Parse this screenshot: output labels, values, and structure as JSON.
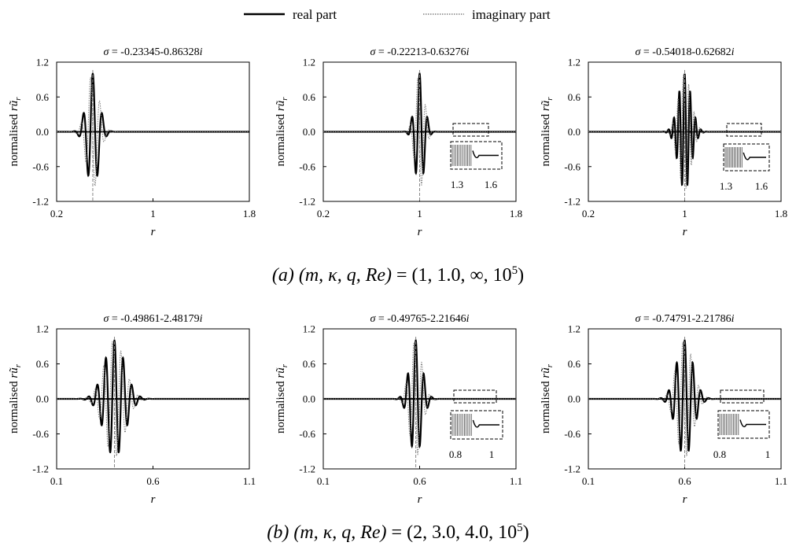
{
  "legend": {
    "real_label": "real part",
    "imag_label": "imaginary part"
  },
  "y_axis_label": {
    "main": "normalised ",
    "var": "r",
    "u": "ũ",
    "sub": "r"
  },
  "rows": [
    {
      "caption": {
        "tag": "(a)",
        "vars_label": "(m, κ, q, Re)",
        "values_label": "= (1, 1.0, ∞, 10",
        "exponent": "5",
        "close": ")"
      }
    },
    {
      "caption": {
        "tag": "(b)",
        "vars_label": "(m, κ, q, Re)",
        "values_label": "= (2, 3.0, 4.0, 10",
        "exponent": "5",
        "close": ")"
      }
    }
  ],
  "chart_data": [
    {
      "type": "line",
      "sigma_symbol": "σ",
      "title_value": " = -0.23345-0.86328",
      "title_i": "i",
      "xlabel": "r",
      "ylabel": "normalised rũr",
      "xlim": [
        0.2,
        1.8
      ],
      "xticks": [
        "0.2",
        "1",
        "1.8"
      ],
      "ylim": [
        -1.2,
        1.2
      ],
      "yticks": [
        "1.2",
        "0.6",
        "0.0",
        "-0.6",
        "-1.2"
      ],
      "series": [
        {
          "name": "real part",
          "center": 0.5,
          "width": 0.072,
          "wavenumber": 80
        },
        {
          "name": "imaginary part",
          "center": 0.5,
          "width": 0.072,
          "wavenumber": 80
        }
      ],
      "vline_x": 0.5,
      "inset": null
    },
    {
      "type": "line",
      "sigma_symbol": "σ",
      "title_value": " = -0.22213-0.63276",
      "title_i": "i",
      "xlabel": "r",
      "ylabel": "normalised rũr",
      "xlim": [
        0.2,
        1.8
      ],
      "xticks": [
        "0.2",
        "1",
        "1.8"
      ],
      "ylim": [
        -1.2,
        1.2
      ],
      "yticks": [
        "1.2",
        "0.6",
        "0.0",
        "-0.6",
        "-1.2"
      ],
      "series": [
        {
          "name": "real part",
          "center": 1.0,
          "width": 0.055,
          "wavenumber": 95
        },
        {
          "name": "imaginary part",
          "center": 1.0,
          "width": 0.055,
          "wavenumber": 95
        }
      ],
      "vline_x": 1.0,
      "inset": {
        "xticks": [
          "1.3",
          "1.6"
        ]
      }
    },
    {
      "type": "line",
      "sigma_symbol": "σ",
      "title_value": " = -0.54018-0.62682",
      "title_i": "i",
      "xlabel": "r",
      "ylabel": "normalised rũr",
      "xlim": [
        0.2,
        1.8
      ],
      "xticks": [
        "0.2",
        "1",
        "1.8"
      ],
      "ylim": [
        -1.2,
        1.2
      ],
      "yticks": [
        "1.2",
        "0.6",
        "0.0",
        "-0.6",
        "-1.2"
      ],
      "series": [
        {
          "name": "real part",
          "center": 1.0,
          "width": 0.075,
          "wavenumber": 140
        },
        {
          "name": "imaginary part",
          "center": 1.0,
          "width": 0.075,
          "wavenumber": 140
        }
      ],
      "vline_x": 1.0,
      "inset": {
        "xticks": [
          "1.3",
          "1.6"
        ]
      }
    },
    {
      "type": "line",
      "sigma_symbol": "σ",
      "title_value": " = -0.49861-2.48179",
      "title_i": "i",
      "xlabel": "r",
      "ylabel": "normalised rũr",
      "xlim": [
        0.1,
        1.1
      ],
      "xticks": [
        "0.1",
        "0.6",
        "1.1"
      ],
      "ylim": [
        -1.2,
        1.2
      ],
      "yticks": [
        "1.2",
        "0.6",
        "0.0",
        "-0.6",
        "-1.2"
      ],
      "series": [
        {
          "name": "real part",
          "center": 0.4,
          "width": 0.075,
          "wavenumber": 140
        },
        {
          "name": "imaginary part",
          "center": 0.4,
          "width": 0.075,
          "wavenumber": 140
        }
      ],
      "vline_x": 0.4,
      "inset": null
    },
    {
      "type": "line",
      "sigma_symbol": "σ",
      "title_value": " = -0.49765-2.21646",
      "title_i": "i",
      "xlabel": "r",
      "ylabel": "normalised rũr",
      "xlim": [
        0.1,
        1.1
      ],
      "xticks": [
        "0.1",
        "0.6",
        "1.1"
      ],
      "ylim": [
        -1.2,
        1.2
      ],
      "yticks": [
        "1.2",
        "0.6",
        "0.0",
        "-0.6",
        "-1.2"
      ],
      "series": [
        {
          "name": "real part",
          "center": 0.58,
          "width": 0.045,
          "wavenumber": 150
        },
        {
          "name": "imaginary part",
          "center": 0.58,
          "width": 0.045,
          "wavenumber": 150
        }
      ],
      "vline_x": 0.58,
      "inset": {
        "xticks": [
          "0.8",
          "1"
        ]
      }
    },
    {
      "type": "line",
      "sigma_symbol": "σ",
      "title_value": " = -0.74791-2.21786",
      "title_i": "i",
      "xlabel": "r",
      "ylabel": "normalised rũr",
      "xlim": [
        0.1,
        1.1
      ],
      "xticks": [
        "0.1",
        "0.6",
        "1.1"
      ],
      "ylim": [
        -1.2,
        1.2
      ],
      "yticks": [
        "1.2",
        "0.6",
        "0.0",
        "-0.6",
        "-1.2"
      ],
      "series": [
        {
          "name": "real part",
          "center": 0.6,
          "width": 0.06,
          "wavenumber": 150
        },
        {
          "name": "imaginary part",
          "center": 0.6,
          "width": 0.06,
          "wavenumber": 150
        }
      ],
      "vline_x": 0.6,
      "inset": {
        "xticks": [
          "0.8",
          "1"
        ]
      }
    }
  ]
}
